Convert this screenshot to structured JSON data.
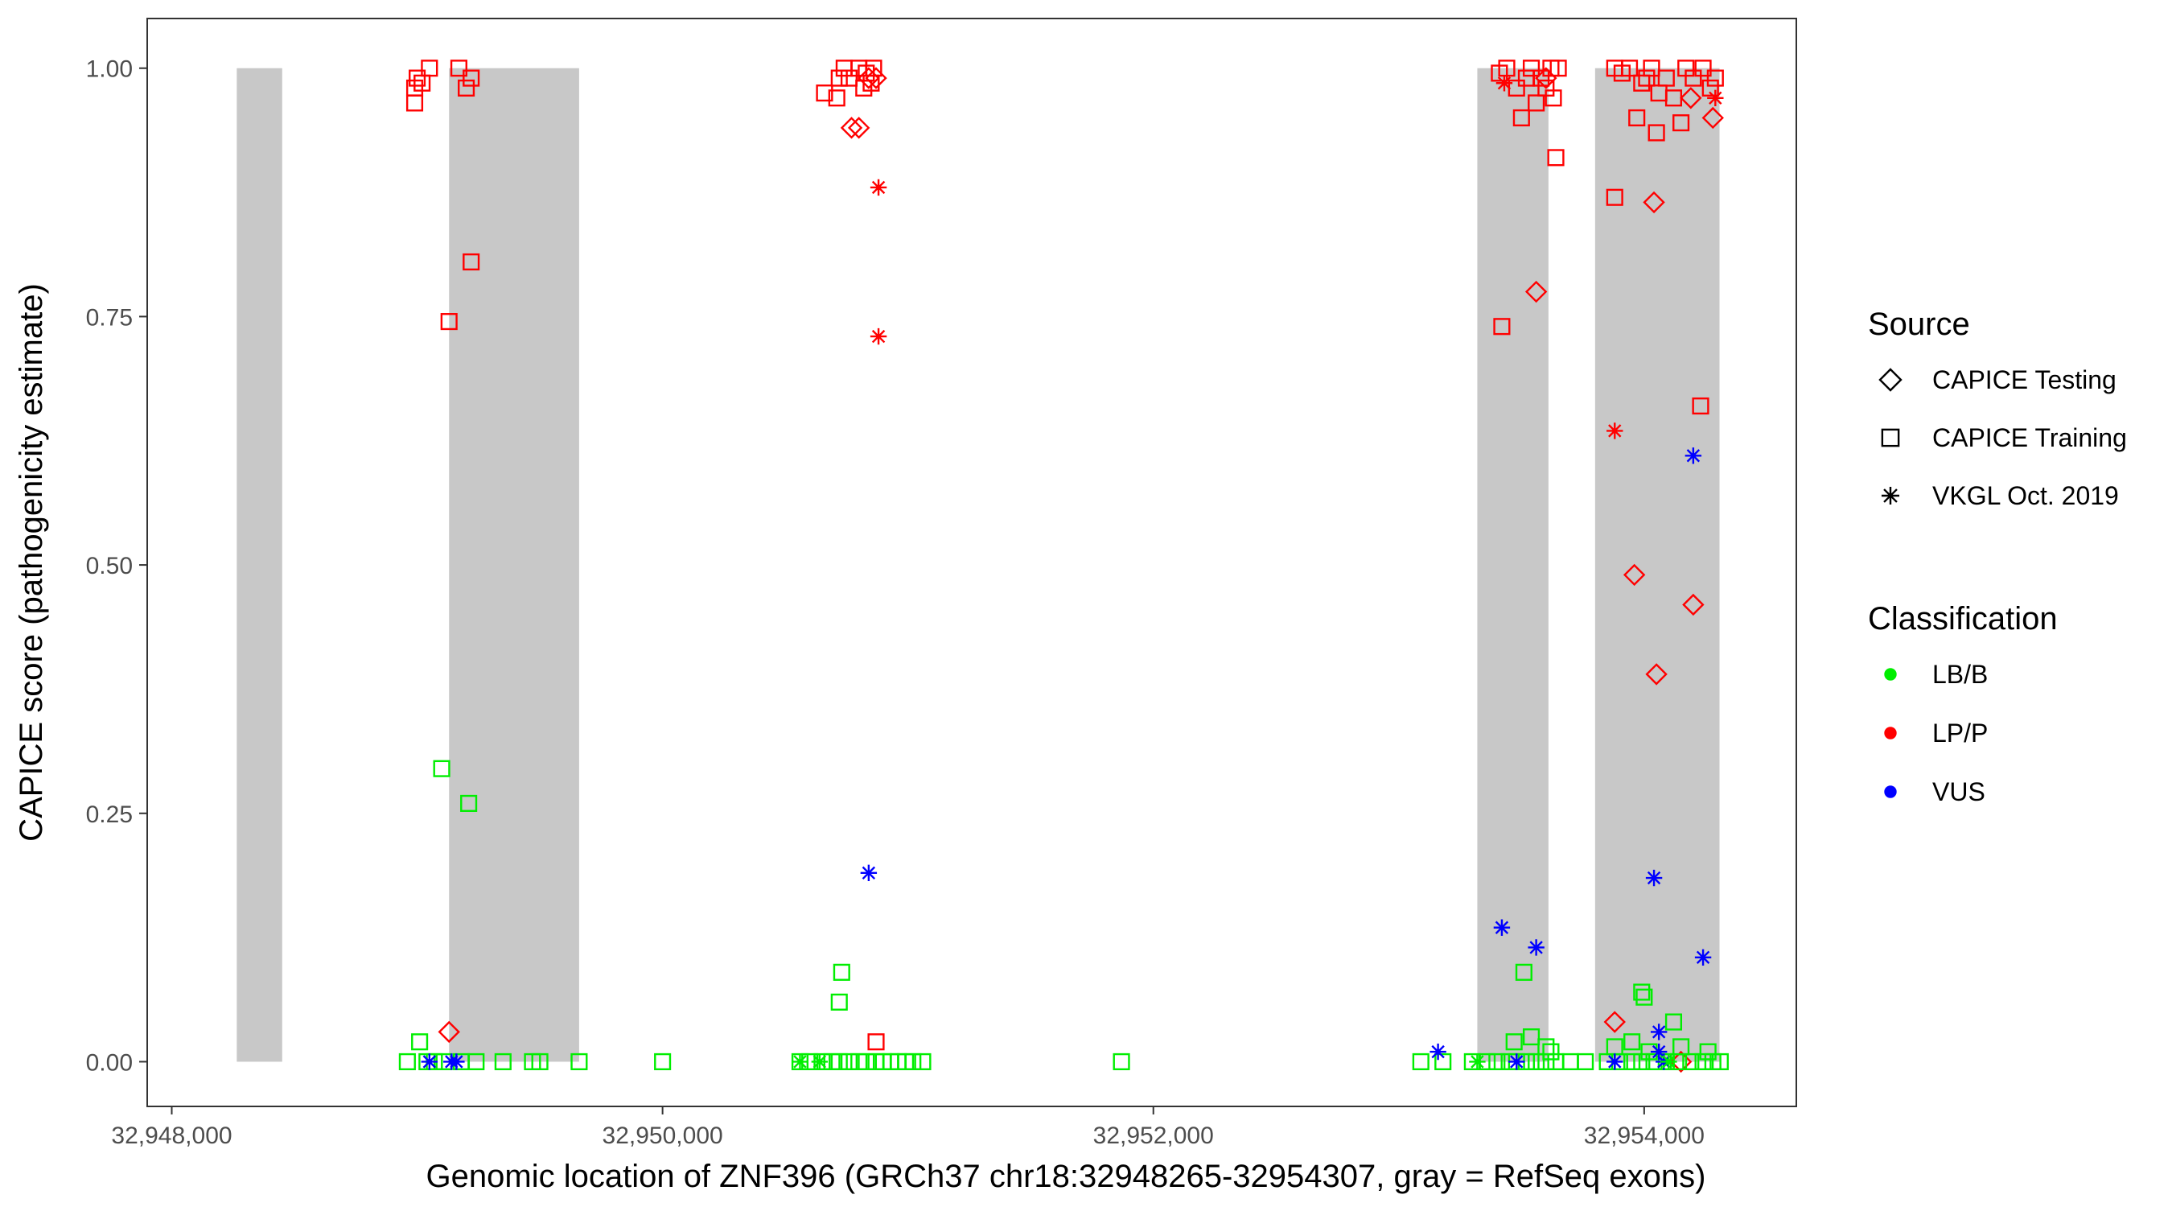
{
  "chart_data": {
    "type": "scatter",
    "title": "",
    "xlabel": "Genomic location of ZNF396 (GRCh37 chr18:32948265-32954307, gray = RefSeq exons)",
    "ylabel": "CAPICE score (pathogenicity estimate)",
    "xlim": [
      32947900,
      32954620
    ],
    "ylim": [
      -0.045,
      1.05
    ],
    "x_ticks": [
      32948000,
      32950000,
      32952000,
      32954000
    ],
    "x_tick_labels": [
      "32,948,000",
      "32,950,000",
      "32,952,000",
      "32,954,000"
    ],
    "y_ticks": [
      0,
      0.25,
      0.5,
      0.75,
      1
    ],
    "y_tick_labels": [
      "0.00",
      "0.25",
      "0.50",
      "0.75",
      "1.00"
    ],
    "grid": false,
    "exons": [
      [
        32948265,
        32948450
      ],
      [
        32949130,
        32949660
      ],
      [
        32953320,
        32953610
      ],
      [
        32953800,
        32954307
      ]
    ],
    "exon_ymax": 1.0,
    "legend": {
      "placement": "right",
      "source_title": "Source",
      "source_items": [
        {
          "label": "CAPICE Testing",
          "shape": "diamond"
        },
        {
          "label": "CAPICE Training",
          "shape": "square"
        },
        {
          "label": "VKGL Oct. 2019",
          "shape": "asterisk"
        }
      ],
      "class_title": "Classification",
      "class_items": [
        {
          "label": "LB/B",
          "color": "#00ee00"
        },
        {
          "label": "LP/P",
          "color": "#ff0000"
        },
        {
          "label": "VUS",
          "color": "#0000ff"
        }
      ]
    },
    "colors": {
      "LB/B": "#00ee00",
      "LP/P": "#ff0000",
      "VUS": "#0000ff",
      "exon": "#c8c8c8"
    },
    "series": [
      {
        "source": "CAPICE Testing",
        "classification": "LP/P",
        "shape": "diamond",
        "points": [
          [
            32950770,
            0.94
          ],
          [
            32950800,
            0.94
          ],
          [
            32950840,
            0.99
          ],
          [
            32950870,
            0.99
          ],
          [
            32949130,
            0.03
          ],
          [
            32953560,
            0.775
          ],
          [
            32953600,
            0.99
          ],
          [
            32953960,
            0.49
          ],
          [
            32954040,
            0.865
          ],
          [
            32954050,
            0.39
          ],
          [
            32954200,
            0.46
          ],
          [
            32954280,
            0.95
          ],
          [
            32954190,
            0.97
          ],
          [
            32953880,
            0.04
          ],
          [
            32954150,
            0.0
          ]
        ]
      },
      {
        "source": "CAPICE Training",
        "classification": "LP/P",
        "shape": "square",
        "points": [
          [
            32948990,
            0.965
          ],
          [
            32948990,
            0.98
          ],
          [
            32949000,
            0.99
          ],
          [
            32949020,
            0.985
          ],
          [
            32949050,
            1.0
          ],
          [
            32949170,
            1.0
          ],
          [
            32949200,
            0.98
          ],
          [
            32949220,
            0.99
          ],
          [
            32949220,
            0.805
          ],
          [
            32949130,
            0.745
          ],
          [
            32950660,
            0.975
          ],
          [
            32950710,
            0.97
          ],
          [
            32950720,
            0.99
          ],
          [
            32950740,
            1.0
          ],
          [
            32950760,
            0.99
          ],
          [
            32950800,
            1.0
          ],
          [
            32950830,
            0.995
          ],
          [
            32950850,
            0.985
          ],
          [
            32950820,
            0.98
          ],
          [
            32950860,
            1.0
          ],
          [
            32953410,
            0.995
          ],
          [
            32953440,
            1.0
          ],
          [
            32953480,
            0.98
          ],
          [
            32953500,
            0.95
          ],
          [
            32953520,
            0.99
          ],
          [
            32953540,
            1.0
          ],
          [
            32953560,
            0.965
          ],
          [
            32953580,
            0.99
          ],
          [
            32953600,
            0.98
          ],
          [
            32953620,
            1.0
          ],
          [
            32953630,
            0.97
          ],
          [
            32953640,
            0.91
          ],
          [
            32953420,
            0.74
          ],
          [
            32953650,
            1.0
          ],
          [
            32953880,
            1.0
          ],
          [
            32953910,
            0.995
          ],
          [
            32953940,
            1.0
          ],
          [
            32953970,
            0.95
          ],
          [
            32953990,
            0.985
          ],
          [
            32954010,
            0.99
          ],
          [
            32954030,
            1.0
          ],
          [
            32954050,
            0.935
          ],
          [
            32954060,
            0.975
          ],
          [
            32954090,
            0.99
          ],
          [
            32954120,
            0.97
          ],
          [
            32954150,
            0.945
          ],
          [
            32954170,
            1.0
          ],
          [
            32954200,
            0.99
          ],
          [
            32954240,
            1.0
          ],
          [
            32954270,
            0.98
          ],
          [
            32954290,
            0.99
          ],
          [
            32953880,
            0.87
          ],
          [
            32954230,
            0.66
          ],
          [
            32950870,
            0.02
          ]
        ]
      },
      {
        "source": "VKGL Oct. 2019",
        "classification": "LP/P",
        "shape": "asterisk",
        "points": [
          [
            32950880,
            0.88
          ],
          [
            32950880,
            0.73
          ],
          [
            32953880,
            0.635
          ],
          [
            32953430,
            0.985
          ],
          [
            32954290,
            0.97
          ]
        ]
      },
      {
        "source": "CAPICE Training",
        "classification": "LB/B",
        "shape": "square",
        "points": [
          [
            32949100,
            0.295
          ],
          [
            32949210,
            0.26
          ],
          [
            32950730,
            0.09
          ],
          [
            32950720,
            0.06
          ],
          [
            32949010,
            0.02
          ],
          [
            32949040,
            0.0
          ],
          [
            32948960,
            0.0
          ],
          [
            32949070,
            0.0
          ],
          [
            32949110,
            0.0
          ],
          [
            32949180,
            0.0
          ],
          [
            32949240,
            0.0
          ],
          [
            32949350,
            0.0
          ],
          [
            32949470,
            0.0
          ],
          [
            32949500,
            0.0
          ],
          [
            32949660,
            0.0
          ],
          [
            32950000,
            0.0
          ],
          [
            32950560,
            0.0
          ],
          [
            32950600,
            0.0
          ],
          [
            32950650,
            0.0
          ],
          [
            32950690,
            0.0
          ],
          [
            32950720,
            0.0
          ],
          [
            32950760,
            0.0
          ],
          [
            32950800,
            0.0
          ],
          [
            32950830,
            0.0
          ],
          [
            32950870,
            0.0
          ],
          [
            32950900,
            0.0
          ],
          [
            32950930,
            0.0
          ],
          [
            32950960,
            0.0
          ],
          [
            32950990,
            0.0
          ],
          [
            32951020,
            0.0
          ],
          [
            32951060,
            0.0
          ],
          [
            32951870,
            0.0
          ],
          [
            32953090,
            0.0
          ],
          [
            32953180,
            0.0
          ],
          [
            32953300,
            0.0
          ],
          [
            32953360,
            0.0
          ],
          [
            32953400,
            0.0
          ],
          [
            32953450,
            0.0
          ],
          [
            32953480,
            0.0
          ],
          [
            32953520,
            0.0
          ],
          [
            32953560,
            0.0
          ],
          [
            32953600,
            0.0
          ],
          [
            32953640,
            0.0
          ],
          [
            32953700,
            0.0
          ],
          [
            32953760,
            0.0
          ],
          [
            32953470,
            0.02
          ],
          [
            32953510,
            0.09
          ],
          [
            32953540,
            0.025
          ],
          [
            32953600,
            0.015
          ],
          [
            32953620,
            0.01
          ],
          [
            32953850,
            0.0
          ],
          [
            32953900,
            0.0
          ],
          [
            32953950,
            0.0
          ],
          [
            32953990,
            0.0
          ],
          [
            32954040,
            0.0
          ],
          [
            32954090,
            0.0
          ],
          [
            32954140,
            0.0
          ],
          [
            32954190,
            0.0
          ],
          [
            32954240,
            0.0
          ],
          [
            32954280,
            0.0
          ],
          [
            32954310,
            0.0
          ],
          [
            32953880,
            0.015
          ],
          [
            32953950,
            0.02
          ],
          [
            32953990,
            0.07
          ],
          [
            32954000,
            0.065
          ],
          [
            32954020,
            0.01
          ],
          [
            32954120,
            0.04
          ],
          [
            32954150,
            0.015
          ],
          [
            32954260,
            0.01
          ]
        ]
      },
      {
        "source": "VKGL Oct. 2019",
        "classification": "VUS",
        "shape": "asterisk",
        "points": [
          [
            32949050,
            0.0
          ],
          [
            32949140,
            0.0
          ],
          [
            32949160,
            0.0
          ],
          [
            32950840,
            0.19
          ],
          [
            32953160,
            0.01
          ],
          [
            32953420,
            0.135
          ],
          [
            32953480,
            0.0
          ],
          [
            32953560,
            0.115
          ],
          [
            32953880,
            0.0
          ],
          [
            32954040,
            0.185
          ],
          [
            32954060,
            0.03
          ],
          [
            32954060,
            0.01
          ],
          [
            32954200,
            0.61
          ],
          [
            32954240,
            0.105
          ],
          [
            32954080,
            0.0
          ]
        ]
      },
      {
        "source": "VKGL Oct. 2019",
        "classification": "LB/B",
        "shape": "asterisk",
        "points": [
          [
            32950560,
            0.0
          ],
          [
            32950640,
            0.0
          ],
          [
            32953320,
            0.0
          ],
          [
            32954100,
            0.0
          ]
        ]
      }
    ]
  }
}
